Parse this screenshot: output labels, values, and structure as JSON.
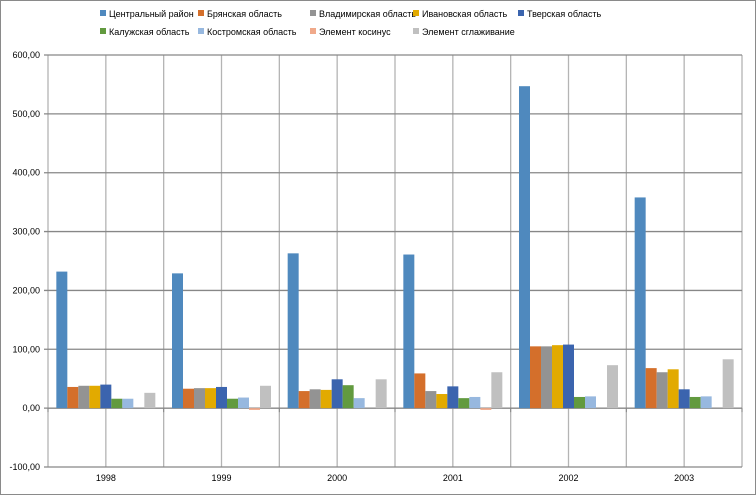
{
  "chart_data": {
    "type": "bar",
    "title": "",
    "xlabel": "",
    "ylabel": "",
    "ylim": [
      -100,
      600
    ],
    "yticks": [
      "-100,00",
      "0,00",
      "100,00",
      "200,00",
      "300,00",
      "400,00",
      "500,00",
      "600,00"
    ],
    "ytick_values": [
      -100,
      0,
      100,
      200,
      300,
      400,
      500,
      600
    ],
    "grid": true,
    "legend_position": "top",
    "categories": [
      "1998",
      "1999",
      "2000",
      "2001",
      "2002",
      "2003"
    ],
    "series": [
      {
        "name": "Центральный район",
        "color": "#4f89be",
        "values": [
          232,
          229,
          263,
          261,
          547,
          358
        ]
      },
      {
        "name": "Брянская область",
        "color": "#d46f2b",
        "values": [
          36,
          33,
          29,
          59,
          105,
          68
        ]
      },
      {
        "name": "Владимирская область",
        "color": "#939393",
        "values": [
          38,
          34,
          32,
          29,
          105,
          61
        ]
      },
      {
        "name": "Ивановская область",
        "color": "#e2aa00",
        "values": [
          38,
          34,
          31,
          24,
          107,
          66
        ]
      },
      {
        "name": "Тверская область",
        "color": "#3b64ae",
        "values": [
          40,
          36,
          49,
          37,
          108,
          32
        ]
      },
      {
        "name": "Калужская область",
        "color": "#629a3f",
        "values": [
          16,
          16,
          39,
          17,
          19,
          19
        ]
      },
      {
        "name": "Костромская область",
        "color": "#97b8df",
        "values": [
          16,
          18,
          17,
          19,
          20,
          20
        ]
      },
      {
        "name": "Элемент косинус",
        "color": "#f0a98a",
        "values": [
          0,
          -3,
          0,
          -3,
          0,
          0
        ]
      },
      {
        "name": "Элемент сглаживание",
        "color": "#c0c0c0",
        "values": [
          26,
          38,
          49,
          61,
          73,
          83
        ]
      }
    ]
  }
}
